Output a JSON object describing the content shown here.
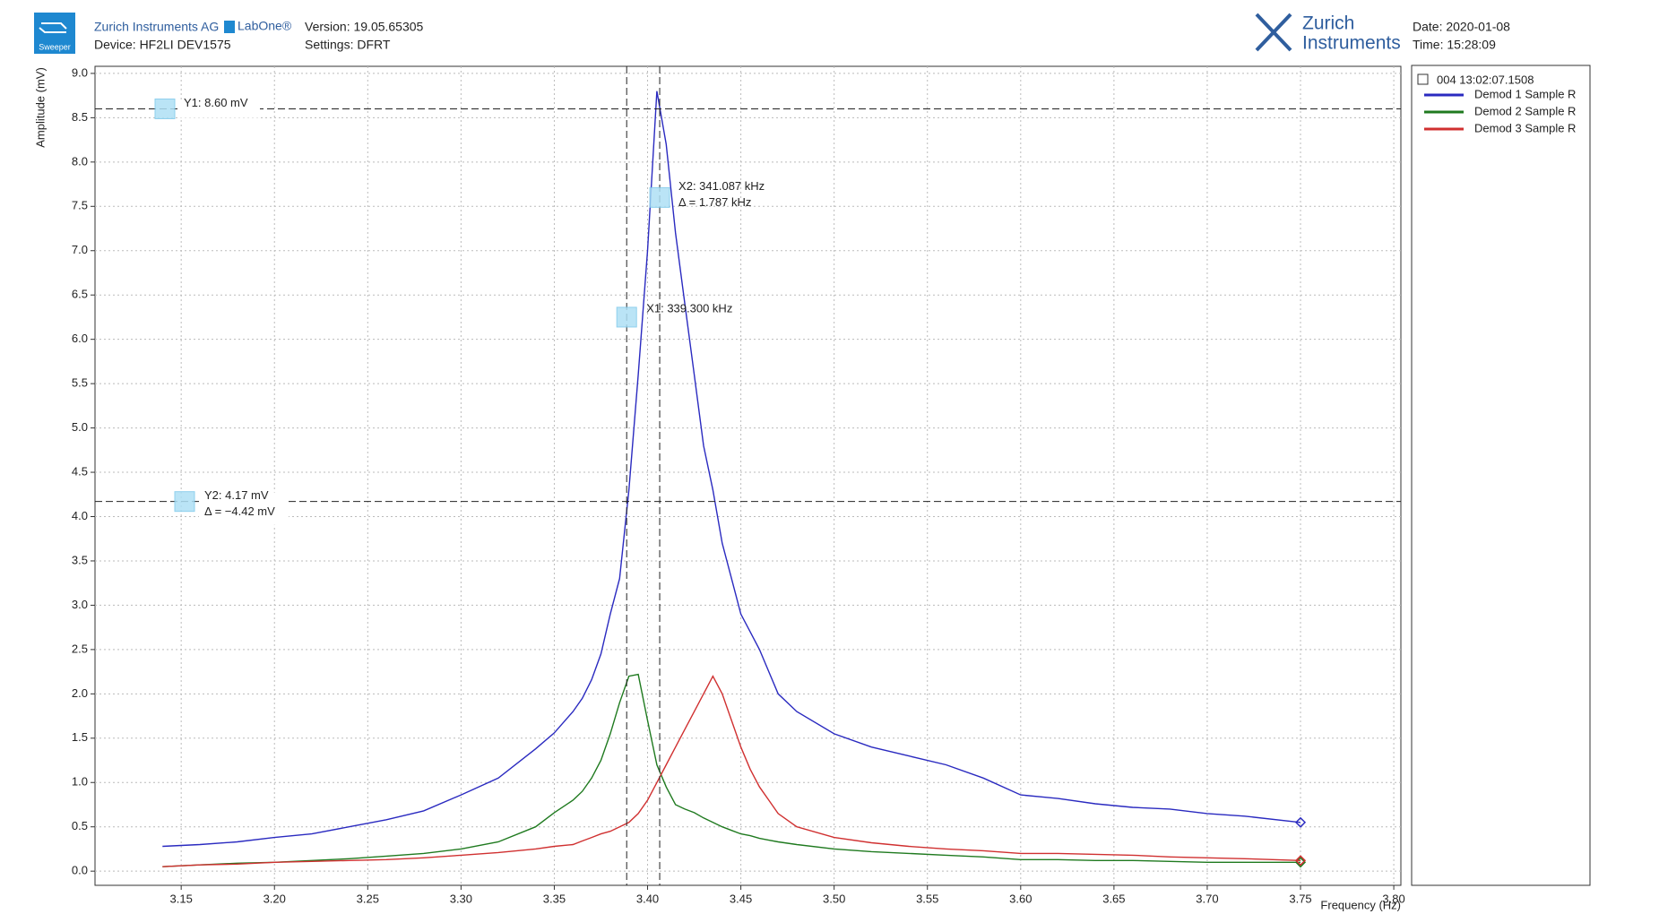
{
  "header": {
    "company": "Zurich Instruments AG",
    "product": "LabOne®",
    "version": "Version: 19.05.65305",
    "device": "Device:  HF2LI DEV1575",
    "settings": "Settings: DFRT",
    "brand_line1": "Zurich",
    "brand_line2": "Instruments",
    "date": "Date: 2020-01-08",
    "time": "Time: 15:28:09",
    "tool": "Sweeper"
  },
  "chart_data": {
    "type": "line",
    "xlabel": "Frequency (Hz)",
    "ylabel": "Amplitude (mV)",
    "xlim": [
      3.1038,
      3.8038
    ],
    "ylim": [
      -0.16,
      9.08
    ],
    "xticks": [
      {
        "value": 3.15,
        "label": "3.15"
      },
      {
        "value": 3.2,
        "label": "3.20"
      },
      {
        "value": 3.25,
        "label": "3.25"
      },
      {
        "value": 3.3,
        "label": "3.30"
      },
      {
        "value": 3.35,
        "label": "3.35"
      },
      {
        "value": 3.4,
        "label": "3.40"
      },
      {
        "value": 3.45,
        "label": "3.45"
      },
      {
        "value": 3.5,
        "label": "3.50"
      },
      {
        "value": 3.55,
        "label": "3.55"
      },
      {
        "value": 3.6,
        "label": "3.60"
      },
      {
        "value": 3.65,
        "label": "3.65"
      },
      {
        "value": 3.7,
        "label": "3.70"
      },
      {
        "value": 3.75,
        "label": "3.75"
      },
      {
        "value": 3.8,
        "label": "3.80"
      }
    ],
    "yticks": [
      {
        "value": 0,
        "label": "0.0"
      },
      {
        "value": 0.5,
        "label": "0.5"
      },
      {
        "value": 1,
        "label": "1.0"
      },
      {
        "value": 1.5,
        "label": "1.5"
      },
      {
        "value": 2,
        "label": "2.0"
      },
      {
        "value": 2.5,
        "label": "2.5"
      },
      {
        "value": 3,
        "label": "3.0"
      },
      {
        "value": 3.5,
        "label": "3.5"
      },
      {
        "value": 4,
        "label": "4.0"
      },
      {
        "value": 4.5,
        "label": "4.5"
      },
      {
        "value": 5,
        "label": "5.0"
      },
      {
        "value": 5.5,
        "label": "5.5"
      },
      {
        "value": 6,
        "label": "6.0"
      },
      {
        "value": 6.5,
        "label": "6.5"
      },
      {
        "value": 7,
        "label": "7.0"
      },
      {
        "value": 7.5,
        "label": "7.5"
      },
      {
        "value": 8,
        "label": "8.0"
      },
      {
        "value": 8.5,
        "label": "8.5"
      },
      {
        "value": 9,
        "label": "9.0"
      }
    ],
    "grid": true,
    "legend_title": "004 13:02:07.1508",
    "x": [
      3.14,
      3.16,
      3.18,
      3.2,
      3.22,
      3.24,
      3.26,
      3.28,
      3.3,
      3.32,
      3.34,
      3.35,
      3.36,
      3.365,
      3.37,
      3.375,
      3.38,
      3.385,
      3.39,
      3.395,
      3.4,
      3.405,
      3.41,
      3.415,
      3.42,
      3.425,
      3.43,
      3.435,
      3.44,
      3.445,
      3.45,
      3.455,
      3.46,
      3.465,
      3.47,
      3.48,
      3.5,
      3.52,
      3.54,
      3.56,
      3.58,
      3.6,
      3.62,
      3.64,
      3.66,
      3.68,
      3.7,
      3.72,
      3.75
    ],
    "series": [
      {
        "name": "Demod 1 Sample R",
        "color": "#2a2ac0",
        "values": [
          0.28,
          0.3,
          0.33,
          0.38,
          0.42,
          0.5,
          0.58,
          0.68,
          0.86,
          1.05,
          1.38,
          1.56,
          1.8,
          1.95,
          2.16,
          2.45,
          2.9,
          3.3,
          4.3,
          5.6,
          7.0,
          8.8,
          8.2,
          7.2,
          6.4,
          5.6,
          4.8,
          4.3,
          3.7,
          3.3,
          2.9,
          2.7,
          2.5,
          2.25,
          2.0,
          1.8,
          1.55,
          1.4,
          1.3,
          1.2,
          1.05,
          0.86,
          0.82,
          0.76,
          0.72,
          0.7,
          0.65,
          0.62,
          0.55
        ]
      },
      {
        "name": "Demod 2 Sample R",
        "color": "#1f7a1f",
        "values": [
          0.05,
          0.07,
          0.09,
          0.1,
          0.12,
          0.14,
          0.17,
          0.2,
          0.25,
          0.33,
          0.5,
          0.66,
          0.8,
          0.9,
          1.05,
          1.25,
          1.55,
          1.9,
          2.2,
          2.22,
          1.7,
          1.2,
          0.95,
          0.75,
          0.7,
          0.66,
          0.6,
          0.55,
          0.5,
          0.46,
          0.42,
          0.4,
          0.37,
          0.35,
          0.33,
          0.3,
          0.25,
          0.22,
          0.2,
          0.18,
          0.16,
          0.13,
          0.13,
          0.12,
          0.12,
          0.11,
          0.1,
          0.1,
          0.1
        ]
      },
      {
        "name": "Demod 3 Sample R",
        "color": "#d03030",
        "values": [
          0.05,
          0.07,
          0.08,
          0.1,
          0.11,
          0.12,
          0.13,
          0.15,
          0.18,
          0.21,
          0.25,
          0.28,
          0.3,
          0.34,
          0.38,
          0.42,
          0.45,
          0.5,
          0.55,
          0.65,
          0.8,
          1.0,
          1.2,
          1.4,
          1.6,
          1.8,
          2.0,
          2.2,
          2.0,
          1.7,
          1.4,
          1.15,
          0.95,
          0.8,
          0.65,
          0.5,
          0.38,
          0.32,
          0.28,
          0.25,
          0.23,
          0.2,
          0.2,
          0.19,
          0.18,
          0.16,
          0.15,
          0.14,
          0.12
        ]
      }
    ],
    "cursors": {
      "x": [
        3.3888,
        3.4065
      ],
      "y": [
        8.6,
        4.17
      ]
    },
    "annotations": {
      "y1": "Y1: 8.60 mV",
      "y2": "Y2: 4.17 mV",
      "y_delta": "Δ = −4.42 mV",
      "x1": "X1: 339.300 kHz",
      "x2": "X2: 341.087 kHz",
      "x_delta": "Δ = 1.787 kHz"
    }
  }
}
